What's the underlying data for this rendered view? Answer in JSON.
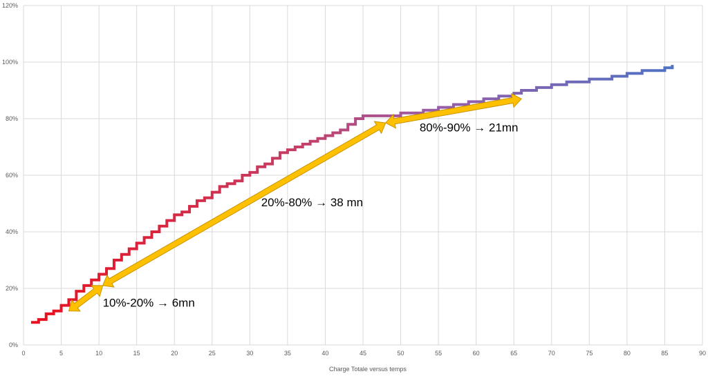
{
  "chart_data": {
    "type": "line",
    "title": "",
    "xlabel": "",
    "ylabel": "",
    "xlim": [
      0,
      90
    ],
    "ylim": [
      0,
      1.2
    ],
    "x_ticks": [
      "0",
      "5",
      "10",
      "15",
      "20",
      "25",
      "30",
      "35",
      "40",
      "45",
      "50",
      "55",
      "60",
      "65",
      "70",
      "75",
      "80",
      "85",
      "90"
    ],
    "y_ticks": [
      "0%",
      "20%",
      "40%",
      "60%",
      "80%",
      "100%",
      "120%"
    ],
    "grid": true,
    "legend_position": "bottom",
    "series": [
      {
        "name": "Charge Totale versus temps",
        "gradient_colors": [
          "#e8101e",
          "#c53f66",
          "#9b5ca6",
          "#4f72c4"
        ],
        "points": [
          [
            1,
            0.08
          ],
          [
            2,
            0.09
          ],
          [
            3,
            0.11
          ],
          [
            4,
            0.12
          ],
          [
            5,
            0.14
          ],
          [
            6,
            0.16
          ],
          [
            7,
            0.19
          ],
          [
            8,
            0.21
          ],
          [
            9,
            0.23
          ],
          [
            10,
            0.25
          ],
          [
            11,
            0.27
          ],
          [
            12,
            0.3
          ],
          [
            13,
            0.32
          ],
          [
            14,
            0.34
          ],
          [
            15,
            0.36
          ],
          [
            16,
            0.38
          ],
          [
            17,
            0.4
          ],
          [
            18,
            0.42
          ],
          [
            19,
            0.44
          ],
          [
            20,
            0.46
          ],
          [
            21,
            0.47
          ],
          [
            22,
            0.49
          ],
          [
            23,
            0.51
          ],
          [
            24,
            0.52
          ],
          [
            25,
            0.54
          ],
          [
            26,
            0.56
          ],
          [
            27,
            0.57
          ],
          [
            28,
            0.58
          ],
          [
            29,
            0.6
          ],
          [
            30,
            0.61
          ],
          [
            31,
            0.63
          ],
          [
            32,
            0.64
          ],
          [
            33,
            0.66
          ],
          [
            34,
            0.68
          ],
          [
            35,
            0.69
          ],
          [
            36,
            0.7
          ],
          [
            37,
            0.71
          ],
          [
            38,
            0.72
          ],
          [
            39,
            0.73
          ],
          [
            40,
            0.74
          ],
          [
            41,
            0.75
          ],
          [
            42,
            0.76
          ],
          [
            43,
            0.78
          ],
          [
            44,
            0.8
          ],
          [
            45,
            0.81
          ],
          [
            48,
            0.81
          ],
          [
            50,
            0.82
          ],
          [
            53,
            0.83
          ],
          [
            55,
            0.84
          ],
          [
            57,
            0.85
          ],
          [
            59,
            0.86
          ],
          [
            61,
            0.87
          ],
          [
            63,
            0.88
          ],
          [
            65,
            0.89
          ],
          [
            66,
            0.9
          ],
          [
            68,
            0.91
          ],
          [
            70,
            0.92
          ],
          [
            72,
            0.93
          ],
          [
            75,
            0.94
          ],
          [
            78,
            0.95
          ],
          [
            80,
            0.96
          ],
          [
            82,
            0.97
          ],
          [
            85,
            0.98
          ],
          [
            86,
            0.99
          ]
        ]
      }
    ],
    "annotations": [
      {
        "text": "10%-20% → 6mn",
        "arrow_from": [
          6,
          0.12
        ],
        "arrow_to": [
          10.5,
          0.21
        ],
        "label_at": [
          10.5,
          0.135
        ]
      },
      {
        "text": "20%-80% → 38 mn",
        "arrow_from": [
          10.5,
          0.21
        ],
        "arrow_to": [
          48,
          0.785
        ],
        "label_at": [
          31.5,
          0.49
        ]
      },
      {
        "text": "80%-90% → 21mn",
        "arrow_from": [
          48,
          0.785
        ],
        "arrow_to": [
          66,
          0.87
        ],
        "label_at": [
          52.5,
          0.755
        ]
      }
    ],
    "arrow_color": "#ffc000"
  }
}
